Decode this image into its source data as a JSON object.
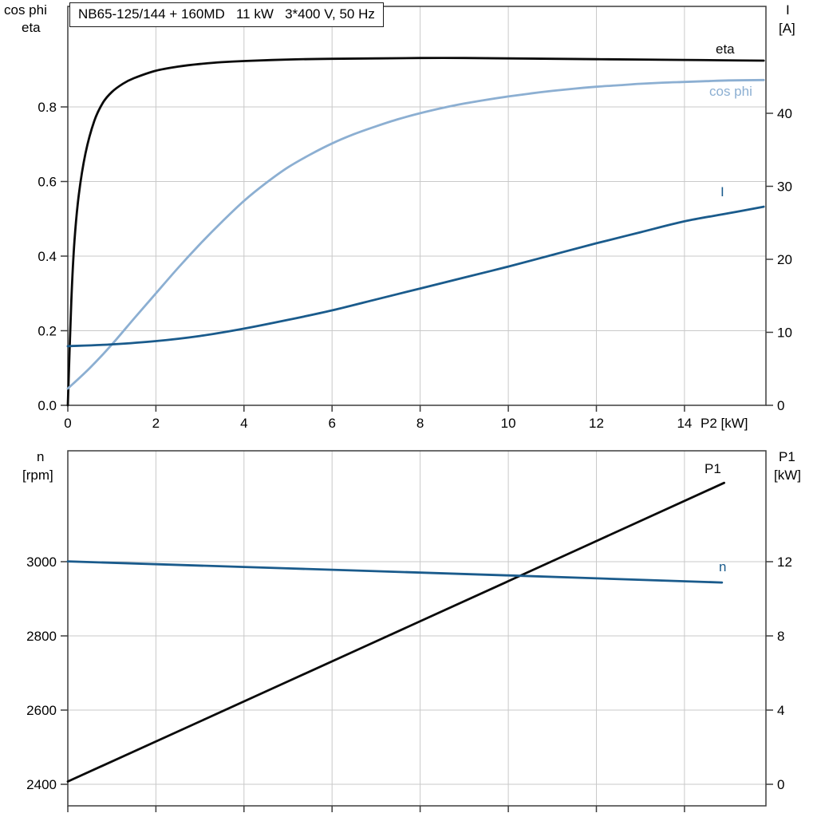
{
  "header": {
    "title_box": "NB65-125/144 + 160MD   11 kW   3*400 V, 50 Hz"
  },
  "colors": {
    "black": "#0a0a0a",
    "light_blue": "#8cafd2",
    "dark_blue": "#1a5b8c",
    "grid": "#c9c9c9",
    "axis": "#3d3d3d",
    "background": "#ffffff",
    "text": "#000000"
  },
  "labels": {
    "c1_y_left_1": "cos phi",
    "c1_y_left_2": "eta",
    "c1_y_right_1": "I",
    "c1_y_right_2": "[A]",
    "c1_x_label": "P2 [kW]",
    "c1_series_eta": "eta",
    "c1_series_cosphi": "cos phi",
    "c1_series_I": "I",
    "c2_y_left_1": "n",
    "c2_y_left_2": "[rpm]",
    "c2_y_right_1": "P1",
    "c2_y_right_2": "[kW]",
    "c2_series_P1": "P1",
    "c2_series_n": "n"
  },
  "chart_data": [
    {
      "type": "line",
      "title": "NB65-125/144 + 160MD   11 kW   3*400 V, 50 Hz",
      "xlabel": "P2 [kW]",
      "y_left_label": "cos phi / eta",
      "y_right_label": "I [A]",
      "grid": true,
      "x_axis": {
        "range": [
          0,
          15.85
        ],
        "tick_values": [
          0,
          2,
          4,
          6,
          8,
          10,
          12,
          14
        ],
        "tick_labels": [
          "0",
          "2",
          "4",
          "6",
          "8",
          "10",
          "12",
          "14"
        ]
      },
      "y_left_axis": {
        "range": [
          0,
          1.0695
        ],
        "tick_values": [
          0,
          0.2,
          0.4,
          0.6,
          0.8
        ],
        "tick_labels": [
          "0.0",
          "0.2",
          "0.4",
          "0.6",
          "0.8"
        ]
      },
      "y_right_axis": {
        "range": [
          0,
          54.64
        ],
        "tick_values": [
          0,
          10,
          20,
          30,
          40
        ],
        "tick_labels": [
          "0",
          "10",
          "20",
          "30",
          "40"
        ]
      },
      "series": [
        {
          "name": "eta",
          "axis": "left",
          "color": "#0a0a0a",
          "points": [
            [
              0,
              0
            ],
            [
              0.08,
              0.28
            ],
            [
              0.15,
              0.44
            ],
            [
              0.25,
              0.565
            ],
            [
              0.4,
              0.675
            ],
            [
              0.6,
              0.762
            ],
            [
              0.8,
              0.812
            ],
            [
              1,
              0.84
            ],
            [
              1.25,
              0.862
            ],
            [
              1.5,
              0.877
            ],
            [
              2,
              0.897
            ],
            [
              2.5,
              0.908
            ],
            [
              3,
              0.915
            ],
            [
              3.5,
              0.92
            ],
            [
              4,
              0.923
            ],
            [
              5,
              0.927
            ],
            [
              6,
              0.929
            ],
            [
              7,
              0.93
            ],
            [
              8,
              0.931
            ],
            [
              9,
              0.931
            ],
            [
              10,
              0.93
            ],
            [
              11,
              0.929
            ],
            [
              12,
              0.928
            ],
            [
              13,
              0.927
            ],
            [
              14,
              0.926
            ],
            [
              15,
              0.925
            ],
            [
              15.8,
              0.924
            ]
          ]
        },
        {
          "name": "cos phi",
          "axis": "left",
          "color": "#8cafd2",
          "points": [
            [
              0,
              0.045
            ],
            [
              0.5,
              0.1
            ],
            [
              1,
              0.163
            ],
            [
              1.5,
              0.232
            ],
            [
              2,
              0.3
            ],
            [
              2.5,
              0.368
            ],
            [
              3,
              0.432
            ],
            [
              3.5,
              0.492
            ],
            [
              4,
              0.548
            ],
            [
              4.5,
              0.596
            ],
            [
              5,
              0.638
            ],
            [
              5.5,
              0.672
            ],
            [
              6,
              0.702
            ],
            [
              6.5,
              0.727
            ],
            [
              7,
              0.748
            ],
            [
              7.5,
              0.767
            ],
            [
              8,
              0.783
            ],
            [
              8.5,
              0.797
            ],
            [
              9,
              0.809
            ],
            [
              9.5,
              0.819
            ],
            [
              10,
              0.828
            ],
            [
              10.5,
              0.836
            ],
            [
              11,
              0.843
            ],
            [
              11.5,
              0.849
            ],
            [
              12,
              0.854
            ],
            [
              12.5,
              0.858
            ],
            [
              13,
              0.862
            ],
            [
              13.5,
              0.865
            ],
            [
              14,
              0.867
            ],
            [
              14.5,
              0.869
            ],
            [
              15,
              0.871
            ],
            [
              15.8,
              0.872
            ]
          ]
        },
        {
          "name": "I",
          "axis": "right",
          "color": "#1a5b8c",
          "points": [
            [
              0,
              8.1
            ],
            [
              1,
              8.35
            ],
            [
              2,
              8.8
            ],
            [
              3,
              9.5
            ],
            [
              4,
              10.5
            ],
            [
              5,
              11.7
            ],
            [
              6,
              13.0
            ],
            [
              7,
              14.5
            ],
            [
              8,
              16.0
            ],
            [
              9,
              17.5
            ],
            [
              10,
              19.0
            ],
            [
              11,
              20.6
            ],
            [
              12,
              22.2
            ],
            [
              13,
              23.7
            ],
            [
              14,
              25.2
            ],
            [
              15,
              26.3
            ],
            [
              15.8,
              27.2
            ]
          ]
        }
      ]
    },
    {
      "type": "line",
      "title": "",
      "xlabel": "",
      "y_left_label": "n [rpm]",
      "y_right_label": "P1 [kW]",
      "grid": true,
      "x_axis": {
        "range": [
          0,
          15.85
        ],
        "tick_values": [
          0,
          2,
          4,
          6,
          8,
          10,
          12,
          14
        ],
        "tick_labels": []
      },
      "y_left_axis": {
        "range": [
          2342,
          3299
        ],
        "tick_values": [
          2400,
          2600,
          2800,
          3000
        ],
        "tick_labels": [
          "2400",
          "2600",
          "2800",
          "3000"
        ]
      },
      "y_right_axis": {
        "range": [
          -1.16,
          17.98
        ],
        "tick_values": [
          0,
          4,
          8,
          12
        ],
        "tick_labels": [
          "0",
          "4",
          "8",
          "12"
        ]
      },
      "series": [
        {
          "name": "P1",
          "axis": "right",
          "color": "#0a0a0a",
          "points": [
            [
              0,
              0.15
            ],
            [
              5,
              5.55
            ],
            [
              10,
              10.95
            ],
            [
              14.9,
              16.25
            ]
          ]
        },
        {
          "name": "n",
          "axis": "left",
          "color": "#1a5b8c",
          "points": [
            [
              0,
              3001
            ],
            [
              5,
              2982
            ],
            [
              10,
              2963
            ],
            [
              14.85,
              2944
            ]
          ]
        }
      ]
    }
  ]
}
